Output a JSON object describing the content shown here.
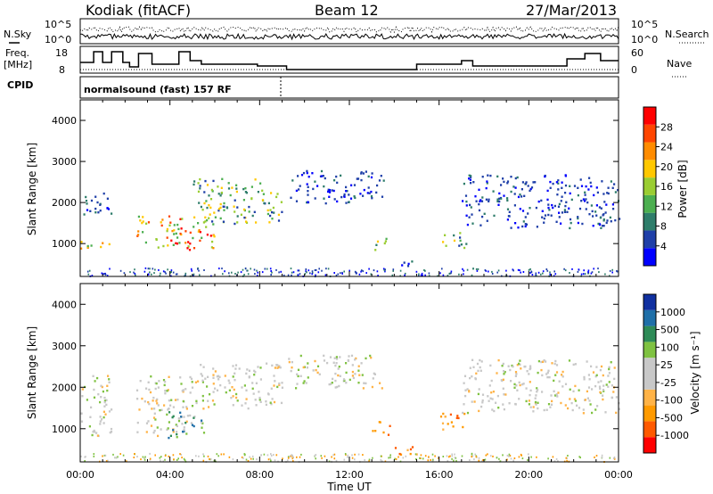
{
  "header": {
    "radar": "Kodiak (fitACF)",
    "beam": "Beam 12",
    "date": "27/Mar/2013"
  },
  "strip_labels": {
    "nsky": "N.Sky",
    "nsearch": "N.Search",
    "freq_line1": "Freq.",
    "freq_line2": "[MHz]",
    "nave": "Nave",
    "cpid": "CPID",
    "cpid_text": "normalsound (fast) 157 RF",
    "noise_tick_top_left": "10^5",
    "noise_tick_bottom_left": "10^0",
    "noise_tick_top_right": "10^5",
    "noise_tick_bottom_right": "10^0",
    "freq_ticks": [
      "18",
      "8"
    ],
    "nave_ticks": [
      "60",
      "0"
    ]
  },
  "colors": {
    "power_scale": [
      "#0000ff",
      "#1f3fa8",
      "#2e7d6a",
      "#4caf50",
      "#9acd32",
      "#ffc800",
      "#ff8c00",
      "#ff4500",
      "#ff0000"
    ],
    "velocity_scale": [
      "#ff0000",
      "#ff5a00",
      "#ff9a00",
      "#ffb347",
      "#c8c8c8",
      "#c8c8c8",
      "#7fc241",
      "#2e8b57",
      "#1f6fa8",
      "#1030a0"
    ]
  },
  "chart_data": [
    {
      "type": "heatmap",
      "title": "",
      "panel": "power",
      "xlabel": "",
      "ylabel": "Slant Range [km]",
      "xlim": [
        "00:00",
        "00:00"
      ],
      "ylim": [
        200,
        4500
      ],
      "yticks": [
        1000,
        2000,
        3000,
        4000
      ],
      "colorbar": {
        "label": "Power [dB]",
        "ticks": [
          "4",
          "8",
          "12",
          "16",
          "20",
          "24",
          "28"
        ],
        "range": [
          0,
          30
        ]
      },
      "regions": [
        {
          "t0": 0.0,
          "t1": 1.4,
          "r0": 850,
          "r1": 1100,
          "level": "high"
        },
        {
          "t0": 0.0,
          "t1": 1.4,
          "r0": 1700,
          "r1": 2300,
          "level": "low"
        },
        {
          "t0": 2.5,
          "t1": 6.0,
          "r0": 850,
          "r1": 1700,
          "level": "high"
        },
        {
          "t0": 5.0,
          "t1": 9.0,
          "r0": 1500,
          "r1": 2600,
          "level": "mid"
        },
        {
          "t0": 9.2,
          "t1": 13.5,
          "r0": 2000,
          "r1": 2800,
          "level": "low"
        },
        {
          "t0": 13.0,
          "t1": 13.8,
          "r0": 850,
          "r1": 1150,
          "level": "mid"
        },
        {
          "t0": 14.0,
          "t1": 15.0,
          "r0": 400,
          "r1": 600,
          "level": "low"
        },
        {
          "t0": 16.0,
          "t1": 17.2,
          "r0": 900,
          "r1": 1300,
          "level": "mid"
        },
        {
          "t0": 17.0,
          "t1": 24.0,
          "r0": 1400,
          "r1": 2700,
          "level": "low"
        }
      ]
    },
    {
      "type": "heatmap",
      "title": "",
      "panel": "velocity",
      "xlabel": "Time UT",
      "ylabel": "Slant Range [km]",
      "xlim": [
        "00:00",
        "00:00"
      ],
      "ylim": [
        200,
        4500
      ],
      "xticks": [
        "00:00",
        "04:00",
        "08:00",
        "12:00",
        "16:00",
        "20:00",
        "00:00"
      ],
      "yticks": [
        1000,
        2000,
        3000,
        4000
      ],
      "colorbar": {
        "label": "Velocity [m s⁻¹]",
        "ticks": [
          "-1000",
          "-500",
          "-100",
          "-25",
          "25",
          "100",
          "500",
          "1000"
        ]
      },
      "regions": [
        {
          "t0": 0.0,
          "t1": 1.4,
          "r0": 850,
          "r1": 2300,
          "level": "zero"
        },
        {
          "t0": 2.5,
          "t1": 5.0,
          "r0": 850,
          "r1": 2300,
          "level": "zero"
        },
        {
          "t0": 3.8,
          "t1": 5.5,
          "r0": 800,
          "r1": 1500,
          "level": "away"
        },
        {
          "t0": 5.0,
          "t1": 9.0,
          "r0": 1500,
          "r1": 2600,
          "level": "zero"
        },
        {
          "t0": 9.2,
          "t1": 13.5,
          "r0": 2000,
          "r1": 2800,
          "level": "zero"
        },
        {
          "t0": 13.0,
          "t1": 13.8,
          "r0": 850,
          "r1": 1200,
          "level": "toward"
        },
        {
          "t0": 14.0,
          "t1": 15.5,
          "r0": 400,
          "r1": 600,
          "level": "toward"
        },
        {
          "t0": 16.0,
          "t1": 17.2,
          "r0": 900,
          "r1": 1400,
          "level": "toward"
        },
        {
          "t0": 17.0,
          "t1": 24.0,
          "r0": 1400,
          "r1": 2700,
          "level": "zero"
        }
      ]
    }
  ]
}
